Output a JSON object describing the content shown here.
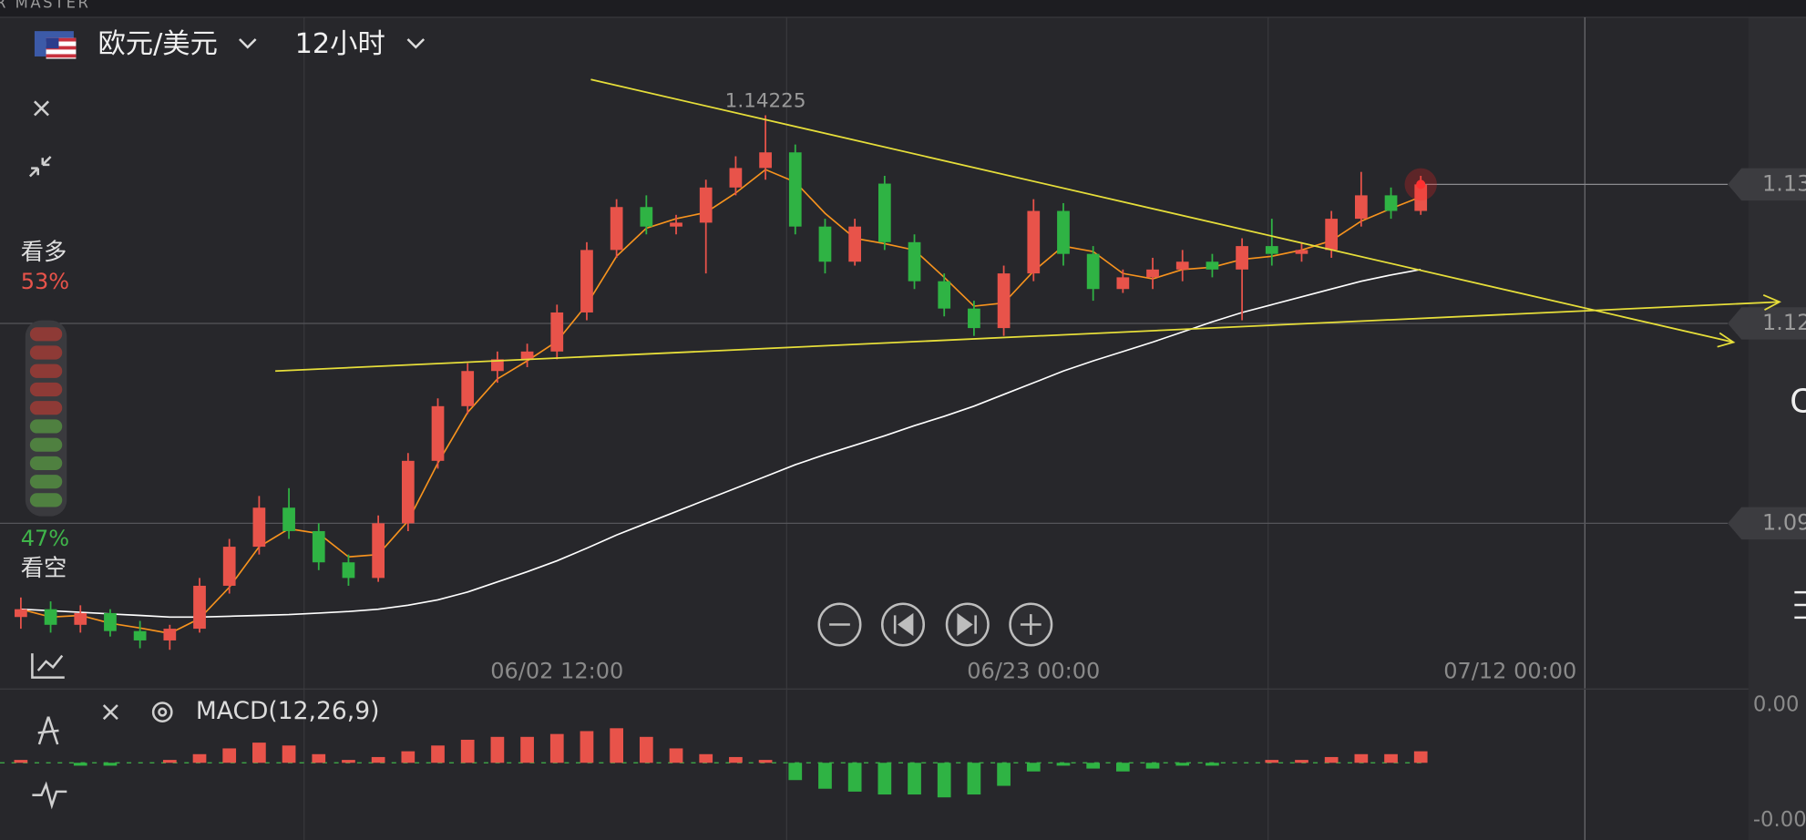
{
  "brand": "R MASTER",
  "header": {
    "pair": "欧元/美元",
    "interval": "12小时"
  },
  "sentiment": {
    "bull_label": "看多",
    "bull_pct": "53%",
    "bear_pct": "47%",
    "bear_label": "看空"
  },
  "chart_data": [
    {
      "type": "candlestick",
      "open": [
        1.078,
        1.079,
        1.077,
        1.0785,
        1.0762,
        1.075,
        1.0765,
        1.082,
        1.087,
        1.092,
        1.089,
        1.085,
        1.083,
        1.09,
        1.098,
        1.105,
        1.1095,
        1.111,
        1.112,
        1.117,
        1.125,
        1.1305,
        1.128,
        1.1285,
        1.133,
        1.1355,
        1.1375,
        1.128,
        1.1235,
        1.1335,
        1.126,
        1.121,
        1.1175,
        1.115,
        1.122,
        1.13,
        1.1245,
        1.12,
        1.1215,
        1.1225,
        1.1235,
        1.1225,
        1.1255,
        1.1245,
        1.125,
        1.129,
        1.132,
        1.13
      ],
      "high": [
        1.0805,
        1.08,
        1.0795,
        1.079,
        1.0775,
        1.077,
        1.083,
        1.088,
        1.0935,
        1.0945,
        1.09,
        1.086,
        1.091,
        1.099,
        1.106,
        1.1105,
        1.112,
        1.113,
        1.118,
        1.126,
        1.1315,
        1.132,
        1.1295,
        1.134,
        1.137,
        1.14225,
        1.1385,
        1.129,
        1.129,
        1.1345,
        1.127,
        1.122,
        1.1185,
        1.123,
        1.1315,
        1.131,
        1.1255,
        1.1225,
        1.124,
        1.125,
        1.1245,
        1.1265,
        1.129,
        1.126,
        1.13,
        1.135,
        1.133,
        1.1345
      ],
      "low": [
        1.0765,
        1.076,
        1.076,
        1.0755,
        1.074,
        1.0738,
        1.076,
        1.081,
        1.086,
        1.088,
        1.084,
        1.082,
        1.0825,
        1.089,
        1.097,
        1.104,
        1.108,
        1.11,
        1.111,
        1.116,
        1.124,
        1.127,
        1.127,
        1.122,
        1.132,
        1.134,
        1.127,
        1.122,
        1.123,
        1.125,
        1.12,
        1.1165,
        1.114,
        1.114,
        1.121,
        1.123,
        1.1185,
        1.1195,
        1.12,
        1.121,
        1.1215,
        1.116,
        1.123,
        1.1235,
        1.124,
        1.128,
        1.129,
        1.1295
      ],
      "close": [
        1.079,
        1.077,
        1.0785,
        1.0762,
        1.075,
        1.0765,
        1.082,
        1.087,
        1.092,
        1.089,
        1.085,
        1.083,
        1.09,
        1.098,
        1.105,
        1.1095,
        1.111,
        1.112,
        1.117,
        1.125,
        1.1305,
        1.128,
        1.1285,
        1.133,
        1.1355,
        1.1375,
        1.128,
        1.1235,
        1.128,
        1.126,
        1.121,
        1.1175,
        1.115,
        1.122,
        1.13,
        1.1245,
        1.12,
        1.1215,
        1.1225,
        1.1235,
        1.1225,
        1.1255,
        1.1245,
        1.125,
        1.129,
        1.132,
        1.13,
        1.1334
      ],
      "up_color": "#e8534a",
      "down_color": "#2fb344",
      "ma": [
        {
          "color": "#f7931e",
          "values": [
            1.079,
            1.078,
            1.0782,
            1.0772,
            1.0766,
            1.0759,
            1.0778,
            1.0818,
            1.087,
            1.0893,
            1.0887,
            1.0857,
            1.086,
            1.0903,
            1.0977,
            1.1042,
            1.1085,
            1.1108,
            1.1133,
            1.118,
            1.1242,
            1.1278,
            1.129,
            1.1298,
            1.1323,
            1.1353,
            1.1337,
            1.1297,
            1.1265,
            1.1258,
            1.125,
            1.1215,
            1.1178,
            1.1182,
            1.1223,
            1.1255,
            1.1248,
            1.122,
            1.1213,
            1.1225,
            1.1228,
            1.1238,
            1.1242,
            1.125,
            1.1262,
            1.1287,
            1.1303,
            1.1318
          ]
        },
        {
          "color": "#ffffff",
          "values": [
            1.079,
            1.0788,
            1.0786,
            1.0784,
            1.0782,
            1.078,
            1.078,
            1.0781,
            1.0782,
            1.0783,
            1.0785,
            1.0787,
            1.079,
            1.0795,
            1.0802,
            1.0812,
            1.0825,
            1.0838,
            1.0852,
            1.0868,
            1.0885,
            1.09,
            1.0915,
            1.093,
            1.0945,
            1.096,
            1.0975,
            1.0988,
            1.1,
            1.1012,
            1.1025,
            1.1037,
            1.105,
            1.1065,
            1.108,
            1.1095,
            1.1108,
            1.112,
            1.1132,
            1.1145,
            1.1158,
            1.117,
            1.118,
            1.119,
            1.12,
            1.121,
            1.1218,
            1.1225
          ]
        }
      ],
      "xlim": [
        -0.7,
        58
      ],
      "xticks": [
        {
          "value": 18,
          "label": "06/02 12:00"
        },
        {
          "value": 34,
          "label": "06/23 00:00"
        },
        {
          "value": 50,
          "label": "07/12 00:00"
        }
      ],
      "ylim": [
        1.0732,
        1.1548
      ],
      "yticks": [
        {
          "value": 1.09,
          "label": "1.09"
        },
        {
          "value": 1.1156,
          "label": "1.12"
        }
      ],
      "grid": true,
      "last_price_label": "1.13"
    },
    {
      "type": "bar",
      "title": "MACD(12,26,9)",
      "values": [
        0.0001,
        0,
        -0.0001,
        -0.0001,
        0,
        0.0001,
        0.0003,
        0.0005,
        0.0007,
        0.0006,
        0.0003,
        0.0001,
        0.0002,
        0.0004,
        0.0006,
        0.0008,
        0.0009,
        0.0009,
        0.001,
        0.0011,
        0.0012,
        0.0009,
        0.0005,
        0.0003,
        0.0002,
        0.0001,
        -0.0006,
        -0.0009,
        -0.001,
        -0.0011,
        -0.0011,
        -0.0012,
        -0.0011,
        -0.0008,
        -0.0003,
        -0.0001,
        -0.0002,
        -0.0003,
        -0.0002,
        -0.0001,
        -0.0001,
        0,
        0.0001,
        0.0001,
        0.0002,
        0.0003,
        0.0003,
        0.0004
      ],
      "up_color": "#e8534a",
      "down_color": "#2fb344",
      "xlim": [
        -0.7,
        58
      ],
      "ylim": [
        -0.00268,
        0.00248
      ],
      "yticks": [
        {
          "value": 0.002,
          "label": "0.00"
        },
        {
          "value": -0.002,
          "label": "-0.00"
        }
      ]
    }
  ]
}
